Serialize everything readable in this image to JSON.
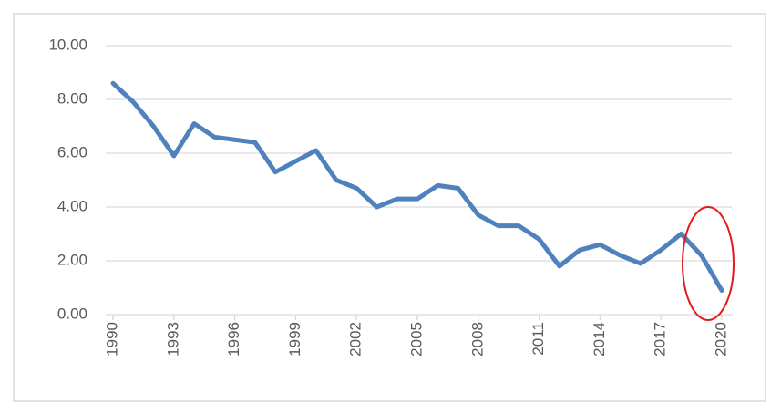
{
  "chart_data": {
    "type": "line",
    "x": [
      1990,
      1991,
      1992,
      1993,
      1994,
      1995,
      1996,
      1997,
      1998,
      1999,
      2000,
      2001,
      2002,
      2003,
      2004,
      2005,
      2006,
      2007,
      2008,
      2009,
      2010,
      2011,
      2012,
      2013,
      2014,
      2015,
      2016,
      2017,
      2018,
      2019,
      2020
    ],
    "values": [
      8.6,
      7.9,
      7.0,
      5.9,
      7.1,
      6.6,
      6.5,
      6.4,
      5.3,
      5.7,
      6.1,
      5.0,
      4.7,
      4.0,
      4.3,
      4.3,
      4.8,
      4.7,
      3.7,
      3.3,
      3.3,
      2.8,
      1.8,
      2.4,
      2.6,
      2.2,
      1.9,
      2.4,
      3.0,
      2.2,
      0.9
    ],
    "color": "#4f81bd",
    "xlim": [
      1990,
      2020
    ],
    "xticks": [
      1990,
      1993,
      1996,
      1999,
      2002,
      2005,
      2008,
      2011,
      2014,
      2017,
      2020
    ],
    "ylim": [
      0,
      10
    ],
    "yticks": [
      {
        "value": 0,
        "label": "0.00"
      },
      {
        "value": 2,
        "label": "2.00"
      },
      {
        "value": 4,
        "label": "4.00"
      },
      {
        "value": 6,
        "label": "6.00"
      },
      {
        "value": 8,
        "label": "8.00"
      },
      {
        "value": 10,
        "label": "10.00"
      }
    ],
    "grid": true
  }
}
